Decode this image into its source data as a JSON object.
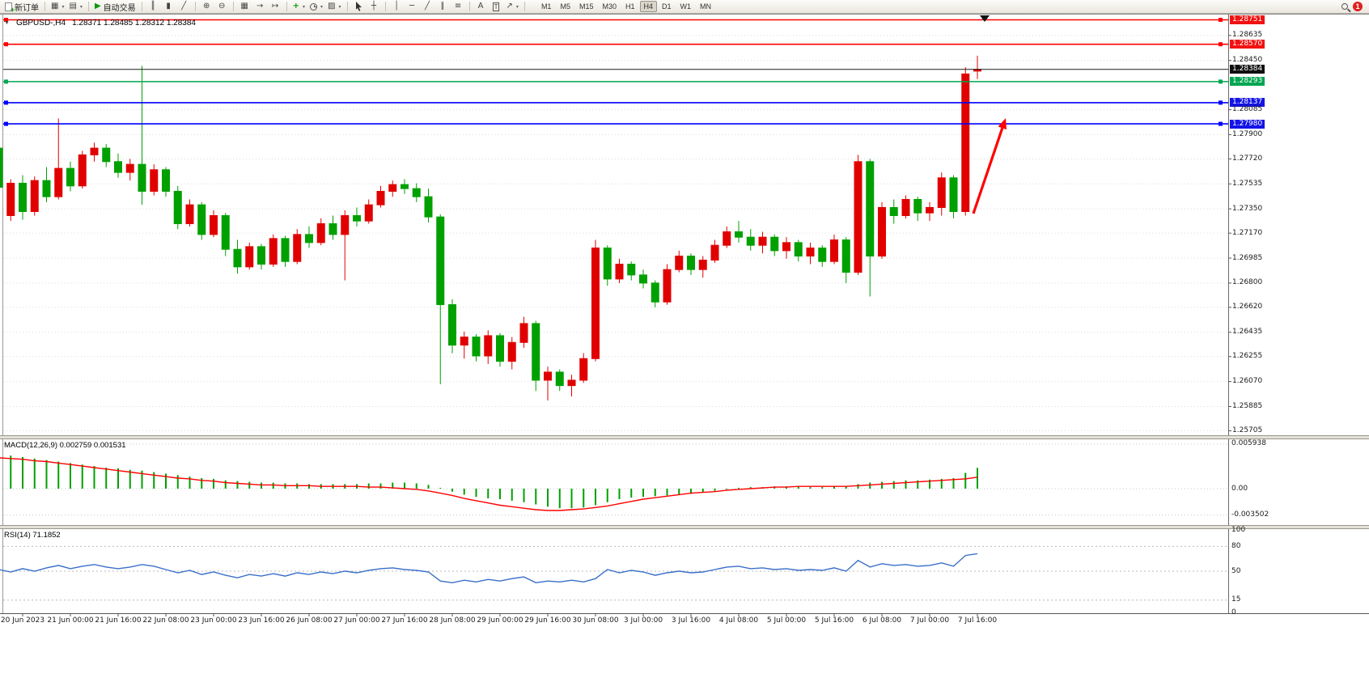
{
  "toolbar": {
    "new_order_label": "新订单",
    "auto_trading_label": "自动交易",
    "timeframes": [
      "M1",
      "M5",
      "M15",
      "M30",
      "H1",
      "H4",
      "D1",
      "W1",
      "MN"
    ],
    "active_timeframe": "H4",
    "notification_badge": "1"
  },
  "glyphs": {
    "collapse": "▼",
    "new_chart": "▦",
    "profiles": "▤",
    "play": "▶",
    "bars": "║",
    "candles": "▮",
    "line_chart": "╱",
    "zoom_in": "⊕",
    "zoom_out": "⊖",
    "tile": "▦",
    "autoscroll": "→",
    "shift": "↦",
    "indicators": "+",
    "templates": "▨",
    "crosshair": "┼",
    "vline": "│",
    "hline": "─",
    "trend": "╱",
    "channel": "∥",
    "fibo": "≡",
    "text": "A",
    "label": "T",
    "arrow_tool": "↗",
    "dropdown": "▾"
  },
  "chart": {
    "symbol_period": "GBPUSD-,H4",
    "ohlc_text": "1.28371 1.28485 1.28312 1.28384",
    "bid_price": 1.28384,
    "up_color": "#e00000",
    "down_color": "#00a000",
    "arrow_color": "#ff0000",
    "price_axis": [
      {
        "label": "1.28751",
        "type": "red"
      },
      {
        "label": "1.28635",
        "type": "plain"
      },
      {
        "label": "1.28570",
        "type": "red"
      },
      {
        "label": "1.28450",
        "type": "plain"
      },
      {
        "label": "1.28384",
        "type": "current"
      },
      {
        "label": "1.28293",
        "type": "green"
      },
      {
        "label": "1.28137",
        "type": "blue"
      },
      {
        "label": "1.28085",
        "type": "plain"
      },
      {
        "label": "1.27980",
        "type": "blue"
      },
      {
        "label": "1.27900",
        "type": "plain"
      },
      {
        "label": "1.27720",
        "type": "plain"
      },
      {
        "label": "1.27535",
        "type": "plain"
      },
      {
        "label": "1.27350",
        "type": "plain"
      },
      {
        "label": "1.27170",
        "type": "plain"
      },
      {
        "label": "1.26985",
        "type": "plain"
      },
      {
        "label": "1.26800",
        "type": "plain"
      },
      {
        "label": "1.26620",
        "type": "plain"
      },
      {
        "label": "1.26435",
        "type": "plain"
      },
      {
        "label": "1.26255",
        "type": "plain"
      },
      {
        "label": "1.26070",
        "type": "plain"
      },
      {
        "label": "1.25885",
        "type": "plain"
      },
      {
        "label": "1.25705",
        "type": "plain"
      }
    ],
    "horizontal_lines": [
      {
        "price": 1.28751,
        "color": "#ff0000"
      },
      {
        "price": 1.2857,
        "color": "#ff0000"
      },
      {
        "price": 1.28293,
        "color": "#00a651"
      },
      {
        "price": 1.28137,
        "color": "#0000ff"
      },
      {
        "price": 1.2798,
        "color": "#0000ff"
      }
    ]
  },
  "macd_panel": {
    "label": "MACD(12,26,9) 0.002759 0.001531",
    "axis": [
      "0.005938",
      "0.00",
      "-0.003502"
    ]
  },
  "rsi_panel": {
    "label": "RSI(14) 71.1852",
    "axis": [
      "100",
      "80",
      "50",
      "15",
      "0"
    ],
    "levels": [
      80,
      50,
      15
    ]
  },
  "chart_data": {
    "type": "candlestick",
    "symbol": "GBPUSD",
    "timeframe": "H4",
    "price_axis_range": [
      1.25672,
      1.2879
    ],
    "time_labels": [
      "20 Jun 2023",
      "21 Jun 00:00",
      "21 Jun 16:00",
      "22 Jun 08:00",
      "23 Jun 00:00",
      "23 Jun 16:00",
      "26 Jun 08:00",
      "27 Jun 00:00",
      "27 Jun 16:00",
      "28 Jun 08:00",
      "29 Jun 00:00",
      "29 Jun 16:00",
      "30 Jun 08:00",
      "3 Jul 00:00",
      "3 Jul 16:00",
      "4 Jul 08:00",
      "5 Jul 00:00",
      "5 Jul 16:00",
      "6 Jul 08:00",
      "7 Jul 00:00",
      "7 Jul 16:00"
    ],
    "candles_ohlc": [
      [
        1.278,
        1.2784,
        1.2746,
        1.2751
      ],
      [
        1.273,
        1.2757,
        1.2726,
        1.2754
      ],
      [
        1.2754,
        1.276,
        1.2727,
        1.2733
      ],
      [
        1.2733,
        1.2759,
        1.273,
        1.2756
      ],
      [
        1.2756,
        1.2766,
        1.274,
        1.2744
      ],
      [
        1.2744,
        1.2802,
        1.2742,
        1.2765
      ],
      [
        1.2765,
        1.277,
        1.2748,
        1.2752
      ],
      [
        1.2752,
        1.2778,
        1.275,
        1.2775
      ],
      [
        1.2775,
        1.2784,
        1.277,
        1.278
      ],
      [
        1.278,
        1.2783,
        1.2766,
        1.277
      ],
      [
        1.277,
        1.2776,
        1.2758,
        1.2762
      ],
      [
        1.2762,
        1.2772,
        1.2756,
        1.2768
      ],
      [
        1.2768,
        1.2841,
        1.2738,
        1.2748
      ],
      [
        1.2748,
        1.2768,
        1.2745,
        1.2764
      ],
      [
        1.2764,
        1.2766,
        1.2744,
        1.2748
      ],
      [
        1.2748,
        1.2752,
        1.272,
        1.2724
      ],
      [
        1.2724,
        1.2742,
        1.2722,
        1.2738
      ],
      [
        1.2738,
        1.274,
        1.2712,
        1.2716
      ],
      [
        1.2716,
        1.2734,
        1.2714,
        1.273
      ],
      [
        1.273,
        1.2732,
        1.27,
        1.2705
      ],
      [
        1.2705,
        1.2712,
        1.2687,
        1.2692
      ],
      [
        1.2692,
        1.271,
        1.269,
        1.2707
      ],
      [
        1.2707,
        1.2709,
        1.269,
        1.2694
      ],
      [
        1.2694,
        1.2716,
        1.2692,
        1.2713
      ],
      [
        1.2713,
        1.2715,
        1.2692,
        1.2696
      ],
      [
        1.2696,
        1.272,
        1.2694,
        1.2716
      ],
      [
        1.2716,
        1.2722,
        1.2706,
        1.271
      ],
      [
        1.271,
        1.2728,
        1.2708,
        1.2724
      ],
      [
        1.2724,
        1.273,
        1.2712,
        1.2716
      ],
      [
        1.2716,
        1.2734,
        1.2682,
        1.273
      ],
      [
        1.273,
        1.2736,
        1.2722,
        1.2726
      ],
      [
        1.2726,
        1.2742,
        1.2724,
        1.2738
      ],
      [
        1.2738,
        1.2752,
        1.2736,
        1.2748
      ],
      [
        1.2748,
        1.2756,
        1.2744,
        1.2753
      ],
      [
        1.2753,
        1.2757,
        1.2746,
        1.275
      ],
      [
        1.275,
        1.2754,
        1.274,
        1.2744
      ],
      [
        1.2744,
        1.275,
        1.2725,
        1.2729
      ],
      [
        1.2729,
        1.2731,
        1.2605,
        1.2664
      ],
      [
        1.2664,
        1.2668,
        1.2628,
        1.2634
      ],
      [
        1.2634,
        1.2644,
        1.2624,
        1.264
      ],
      [
        1.264,
        1.2642,
        1.2622,
        1.2626
      ],
      [
        1.2626,
        1.2645,
        1.262,
        1.2641
      ],
      [
        1.2641,
        1.2643,
        1.2618,
        1.2622
      ],
      [
        1.2622,
        1.264,
        1.2616,
        1.2636
      ],
      [
        1.2636,
        1.2655,
        1.2632,
        1.265
      ],
      [
        1.265,
        1.2652,
        1.26,
        1.2608
      ],
      [
        1.2608,
        1.2618,
        1.2593,
        1.2614
      ],
      [
        1.2614,
        1.2616,
        1.26,
        1.2604
      ],
      [
        1.2604,
        1.2612,
        1.2596,
        1.2608
      ],
      [
        1.2608,
        1.2628,
        1.2606,
        1.2624
      ],
      [
        1.2624,
        1.2712,
        1.2622,
        1.2706
      ],
      [
        1.2706,
        1.2708,
        1.2678,
        1.2683
      ],
      [
        1.2683,
        1.2698,
        1.268,
        1.2694
      ],
      [
        1.2694,
        1.2696,
        1.2682,
        1.2686
      ],
      [
        1.2686,
        1.269,
        1.2676,
        1.268
      ],
      [
        1.268,
        1.2682,
        1.2662,
        1.2666
      ],
      [
        1.2666,
        1.2694,
        1.2664,
        1.269
      ],
      [
        1.269,
        1.2704,
        1.2688,
        1.27
      ],
      [
        1.27,
        1.2702,
        1.2686,
        1.269
      ],
      [
        1.269,
        1.27,
        1.2684,
        1.2697
      ],
      [
        1.2697,
        1.2712,
        1.2695,
        1.2708
      ],
      [
        1.2708,
        1.2722,
        1.2706,
        1.2718
      ],
      [
        1.2718,
        1.2726,
        1.271,
        1.2714
      ],
      [
        1.2714,
        1.272,
        1.2704,
        1.2708
      ],
      [
        1.2708,
        1.2718,
        1.2702,
        1.2714
      ],
      [
        1.2714,
        1.2716,
        1.27,
        1.2704
      ],
      [
        1.2704,
        1.2714,
        1.2698,
        1.271
      ],
      [
        1.271,
        1.2712,
        1.2696,
        1.27
      ],
      [
        1.27,
        1.271,
        1.2694,
        1.2706
      ],
      [
        1.2706,
        1.2708,
        1.2692,
        1.2696
      ],
      [
        1.2696,
        1.2716,
        1.2694,
        1.2712
      ],
      [
        1.2712,
        1.2714,
        1.268,
        1.2688
      ],
      [
        1.2688,
        1.2775,
        1.2686,
        1.277
      ],
      [
        1.277,
        1.2772,
        1.267,
        1.27
      ],
      [
        1.27,
        1.274,
        1.2698,
        1.2736
      ],
      [
        1.2736,
        1.2742,
        1.2724,
        1.273
      ],
      [
        1.273,
        1.2745,
        1.2728,
        1.2742
      ],
      [
        1.2742,
        1.2744,
        1.2726,
        1.2732
      ],
      [
        1.2732,
        1.274,
        1.2726,
        1.2736
      ],
      [
        1.2736,
        1.2762,
        1.273,
        1.2758
      ],
      [
        1.2758,
        1.276,
        1.2728,
        1.2733
      ],
      [
        1.2733,
        1.284,
        1.273,
        1.2835
      ],
      [
        1.28371,
        1.28485,
        1.28312,
        1.28384
      ]
    ],
    "macd": {
      "histogram": [
        0.0046,
        0.0044,
        0.0042,
        0.004,
        0.0038,
        0.0036,
        0.0034,
        0.0032,
        0.003,
        0.0028,
        0.0027,
        0.0025,
        0.0024,
        0.0022,
        0.002,
        0.0018,
        0.0016,
        0.0014,
        0.0013,
        0.0011,
        0.001,
        0.0009,
        0.0008,
        0.0008,
        0.0007,
        0.0007,
        0.0006,
        0.0006,
        0.0006,
        0.0006,
        0.0006,
        0.0007,
        0.0007,
        0.0008,
        0.0008,
        0.0007,
        0.0005,
        0.0001,
        -0.0004,
        -0.0008,
        -0.0011,
        -0.0013,
        -0.0014,
        -0.0016,
        -0.0018,
        -0.0021,
        -0.0024,
        -0.0026,
        -0.0026,
        -0.0025,
        -0.0022,
        -0.0018,
        -0.0014,
        -0.0012,
        -0.0011,
        -0.001,
        -0.0009,
        -0.0008,
        -0.0007,
        -0.0005,
        -0.0003,
        -0.0001,
        0.0001,
        0.0002,
        0.0002,
        0.0003,
        0.0003,
        0.0003,
        0.0002,
        0.0002,
        0.0003,
        0.0003,
        0.0006,
        0.0008,
        0.0009,
        0.001,
        0.0011,
        0.0011,
        0.0012,
        0.0013,
        0.0014,
        0.0021,
        0.002759
      ],
      "signal": [
        0.0041,
        0.004,
        0.0039,
        0.0037,
        0.0036,
        0.0034,
        0.0032,
        0.003,
        0.0028,
        0.0026,
        0.0024,
        0.0022,
        0.002,
        0.0018,
        0.0016,
        0.0014,
        0.0013,
        0.0011,
        0.001,
        0.0008,
        0.0007,
        0.0006,
        0.0005,
        0.0005,
        0.0004,
        0.0004,
        0.0004,
        0.0003,
        0.0003,
        0.0003,
        0.0003,
        0.0002,
        0.0002,
        0.0001,
        0.0,
        -0.0001,
        -0.0003,
        -0.0006,
        -0.0009,
        -0.0013,
        -0.0016,
        -0.0019,
        -0.0022,
        -0.0024,
        -0.0026,
        -0.0028,
        -0.0029,
        -0.0029,
        -0.0028,
        -0.0027,
        -0.0025,
        -0.0023,
        -0.002,
        -0.0017,
        -0.0014,
        -0.0012,
        -0.001,
        -0.0008,
        -0.0006,
        -0.0005,
        -0.0004,
        -0.0002,
        -0.0001,
        0.0,
        0.0001,
        0.0002,
        0.0002,
        0.0003,
        0.0003,
        0.0003,
        0.0003,
        0.0003,
        0.0004,
        0.0005,
        0.0006,
        0.0007,
        0.0008,
        0.0009,
        0.001,
        0.0011,
        0.0012,
        0.0013,
        0.001531
      ]
    },
    "rsi": {
      "values": [
        52,
        49,
        53,
        50,
        54,
        57,
        53,
        56,
        58,
        55,
        53,
        55,
        58,
        56,
        52,
        48,
        51,
        46,
        49,
        45,
        42,
        46,
        44,
        47,
        44,
        48,
        46,
        49,
        47,
        50,
        48,
        51,
        53,
        54,
        52,
        51,
        49,
        38,
        36,
        39,
        37,
        40,
        38,
        41,
        43,
        36,
        38,
        37,
        39,
        37,
        41,
        52,
        48,
        51,
        49,
        45,
        48,
        50,
        48,
        49,
        52,
        55,
        56,
        53,
        54,
        52,
        53,
        51,
        52,
        51,
        54,
        50,
        63,
        55,
        59,
        57,
        58,
        56,
        57,
        60,
        56,
        69,
        71.1852
      ]
    }
  }
}
